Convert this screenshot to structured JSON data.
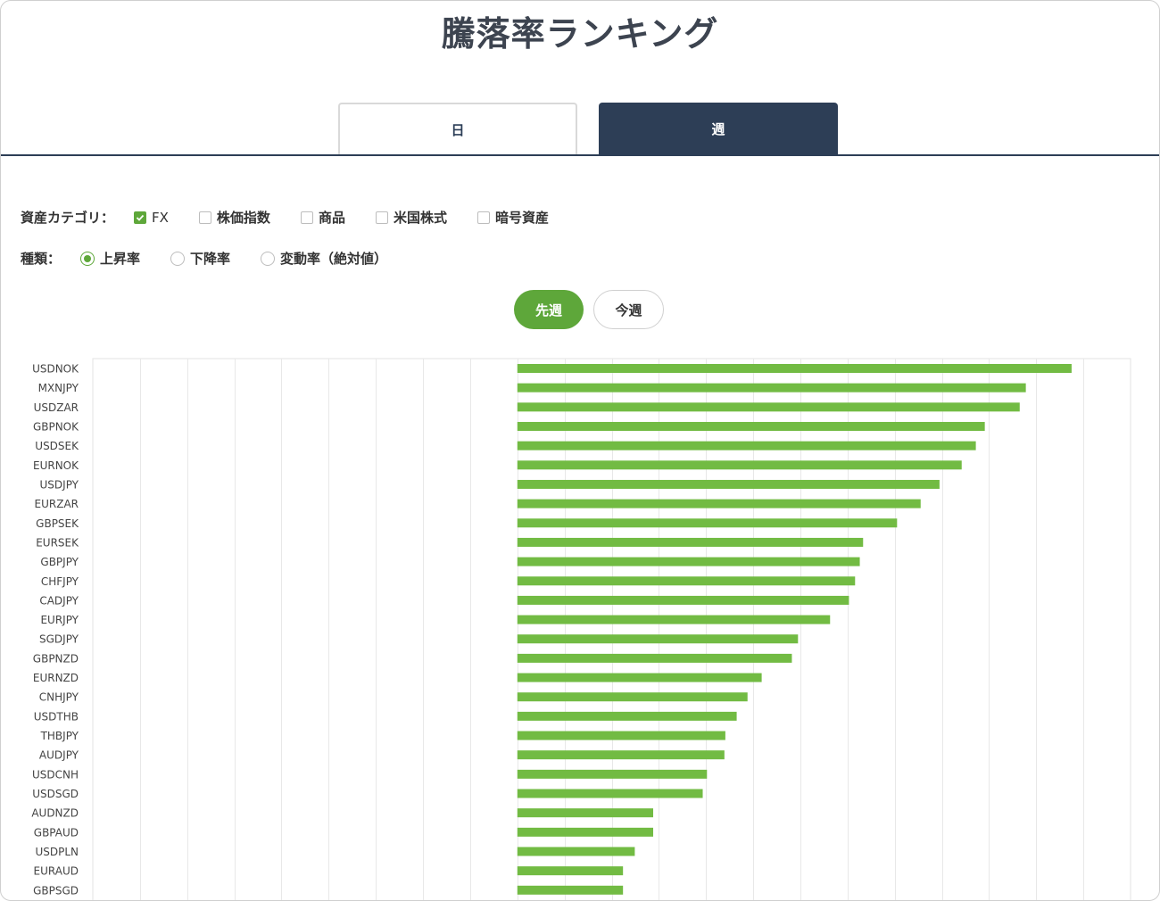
{
  "page": {
    "title": "騰落率ランキング"
  },
  "tabs": [
    {
      "label": "日",
      "active": false
    },
    {
      "label": "週",
      "active": true
    }
  ],
  "filters": {
    "category_label": "資産カテゴリ：",
    "categories": [
      {
        "label": "FX",
        "checked": true
      },
      {
        "label": "株価指数",
        "checked": false
      },
      {
        "label": "商品",
        "checked": false
      },
      {
        "label": "米国株式",
        "checked": false
      },
      {
        "label": "暗号資産",
        "checked": false
      }
    ],
    "type_label": "種類：",
    "types": [
      {
        "label": "上昇率",
        "selected": true
      },
      {
        "label": "下降率",
        "selected": false
      },
      {
        "label": "変動率（絶対値）",
        "selected": false
      }
    ]
  },
  "period": {
    "last_week": "先週",
    "this_week": "今週",
    "selected": "last_week"
  },
  "colors": {
    "accent": "#5ea73a",
    "bar": "#72bb43",
    "navy": "#2d3e56"
  },
  "chart_data": {
    "type": "bar",
    "orientation": "horizontal",
    "categories": [
      "USDNOK",
      "MXNJPY",
      "USDZAR",
      "GBPNOK",
      "USDSEK",
      "EURNOK",
      "USDJPY",
      "EURZAR",
      "GBPSEK",
      "EURSEK",
      "GBPJPY",
      "CHFJPY",
      "CADJPY",
      "EURJPY",
      "SGDJPY",
      "GBPNZD",
      "EURNZD",
      "CNHJPY",
      "USDTHB",
      "THBJPY",
      "AUDJPY",
      "USDCNH",
      "USDSGD",
      "AUDNZD",
      "GBPAUD",
      "USDPLN",
      "EURAUD",
      "GBPSGD"
    ],
    "values": [
      11.75,
      10.78,
      10.65,
      9.91,
      9.72,
      9.42,
      8.95,
      8.55,
      8.05,
      7.33,
      7.26,
      7.16,
      7.03,
      6.63,
      5.95,
      5.82,
      5.18,
      4.88,
      4.65,
      4.41,
      4.39,
      4.02,
      3.93,
      2.88,
      2.88,
      2.49,
      2.24,
      2.24
    ],
    "xlim": [
      -9,
      13
    ],
    "grid": true,
    "legend": "none"
  }
}
